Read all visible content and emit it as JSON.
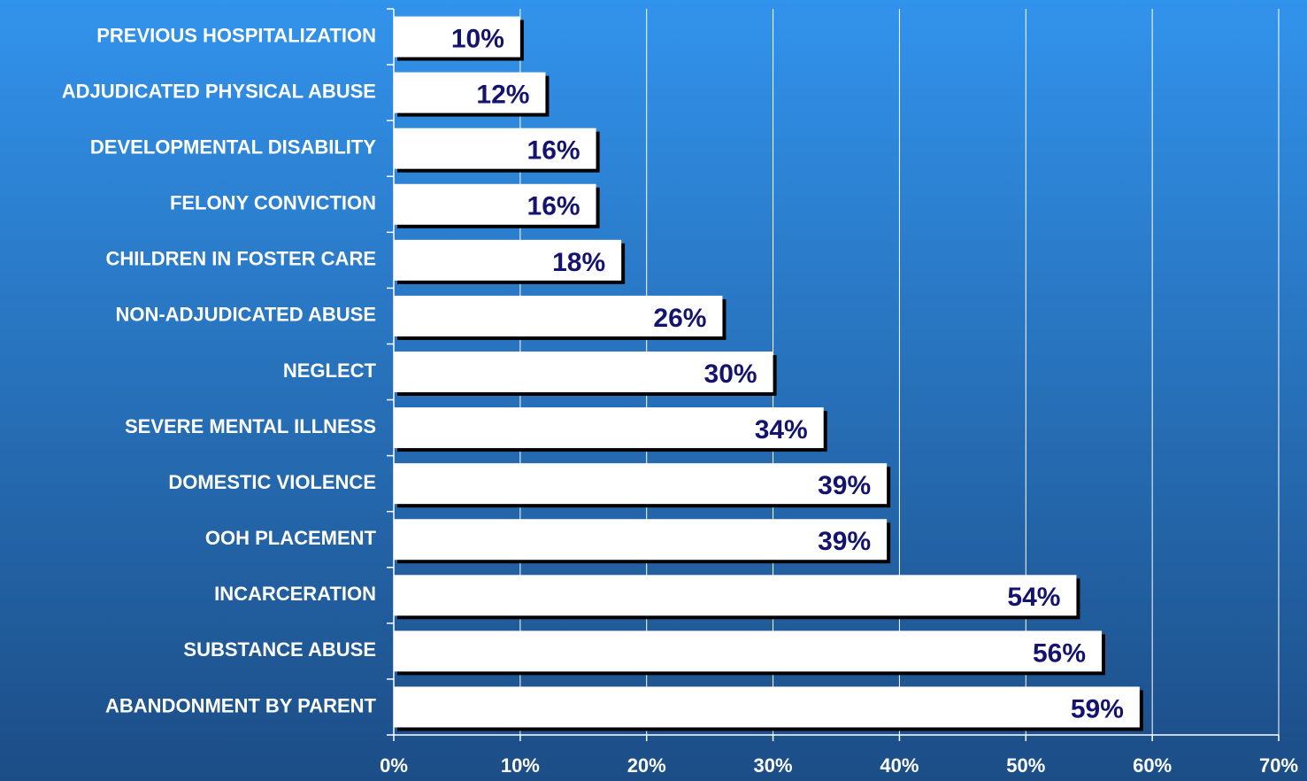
{
  "chart_data": {
    "type": "barh",
    "categories": [
      "PREVIOUS HOSPITALIZATION",
      "ADJUDICATED PHYSICAL ABUSE",
      "DEVELOPMENTAL DISABILITY",
      "FELONY CONVICTION",
      "CHILDREN IN FOSTER CARE",
      "NON-ADJUDICATED ABUSE",
      "NEGLECT",
      "SEVERE MENTAL ILLNESS",
      "DOMESTIC VIOLENCE",
      "OOH PLACEMENT",
      "INCARCERATION",
      "SUBSTANCE ABUSE",
      "ABANDONMENT BY PARENT"
    ],
    "values": [
      10,
      12,
      16,
      16,
      18,
      26,
      30,
      34,
      39,
      39,
      54,
      56,
      59
    ],
    "value_labels": [
      "10%",
      "12%",
      "16%",
      "16%",
      "18%",
      "26%",
      "30%",
      "34%",
      "39%",
      "39%",
      "54%",
      "56%",
      "59%"
    ],
    "color": "#ffffff",
    "xlim": [
      0,
      70
    ],
    "xticks": [
      {
        "value": 0,
        "label": "0%"
      },
      {
        "value": 10,
        "label": "10%"
      },
      {
        "value": 20,
        "label": "20%"
      },
      {
        "value": 30,
        "label": "30%"
      },
      {
        "value": 40,
        "label": "40%"
      },
      {
        "value": 50,
        "label": "50%"
      },
      {
        "value": 60,
        "label": "60%"
      },
      {
        "value": 70,
        "label": "70%"
      }
    ],
    "grid": true
  }
}
